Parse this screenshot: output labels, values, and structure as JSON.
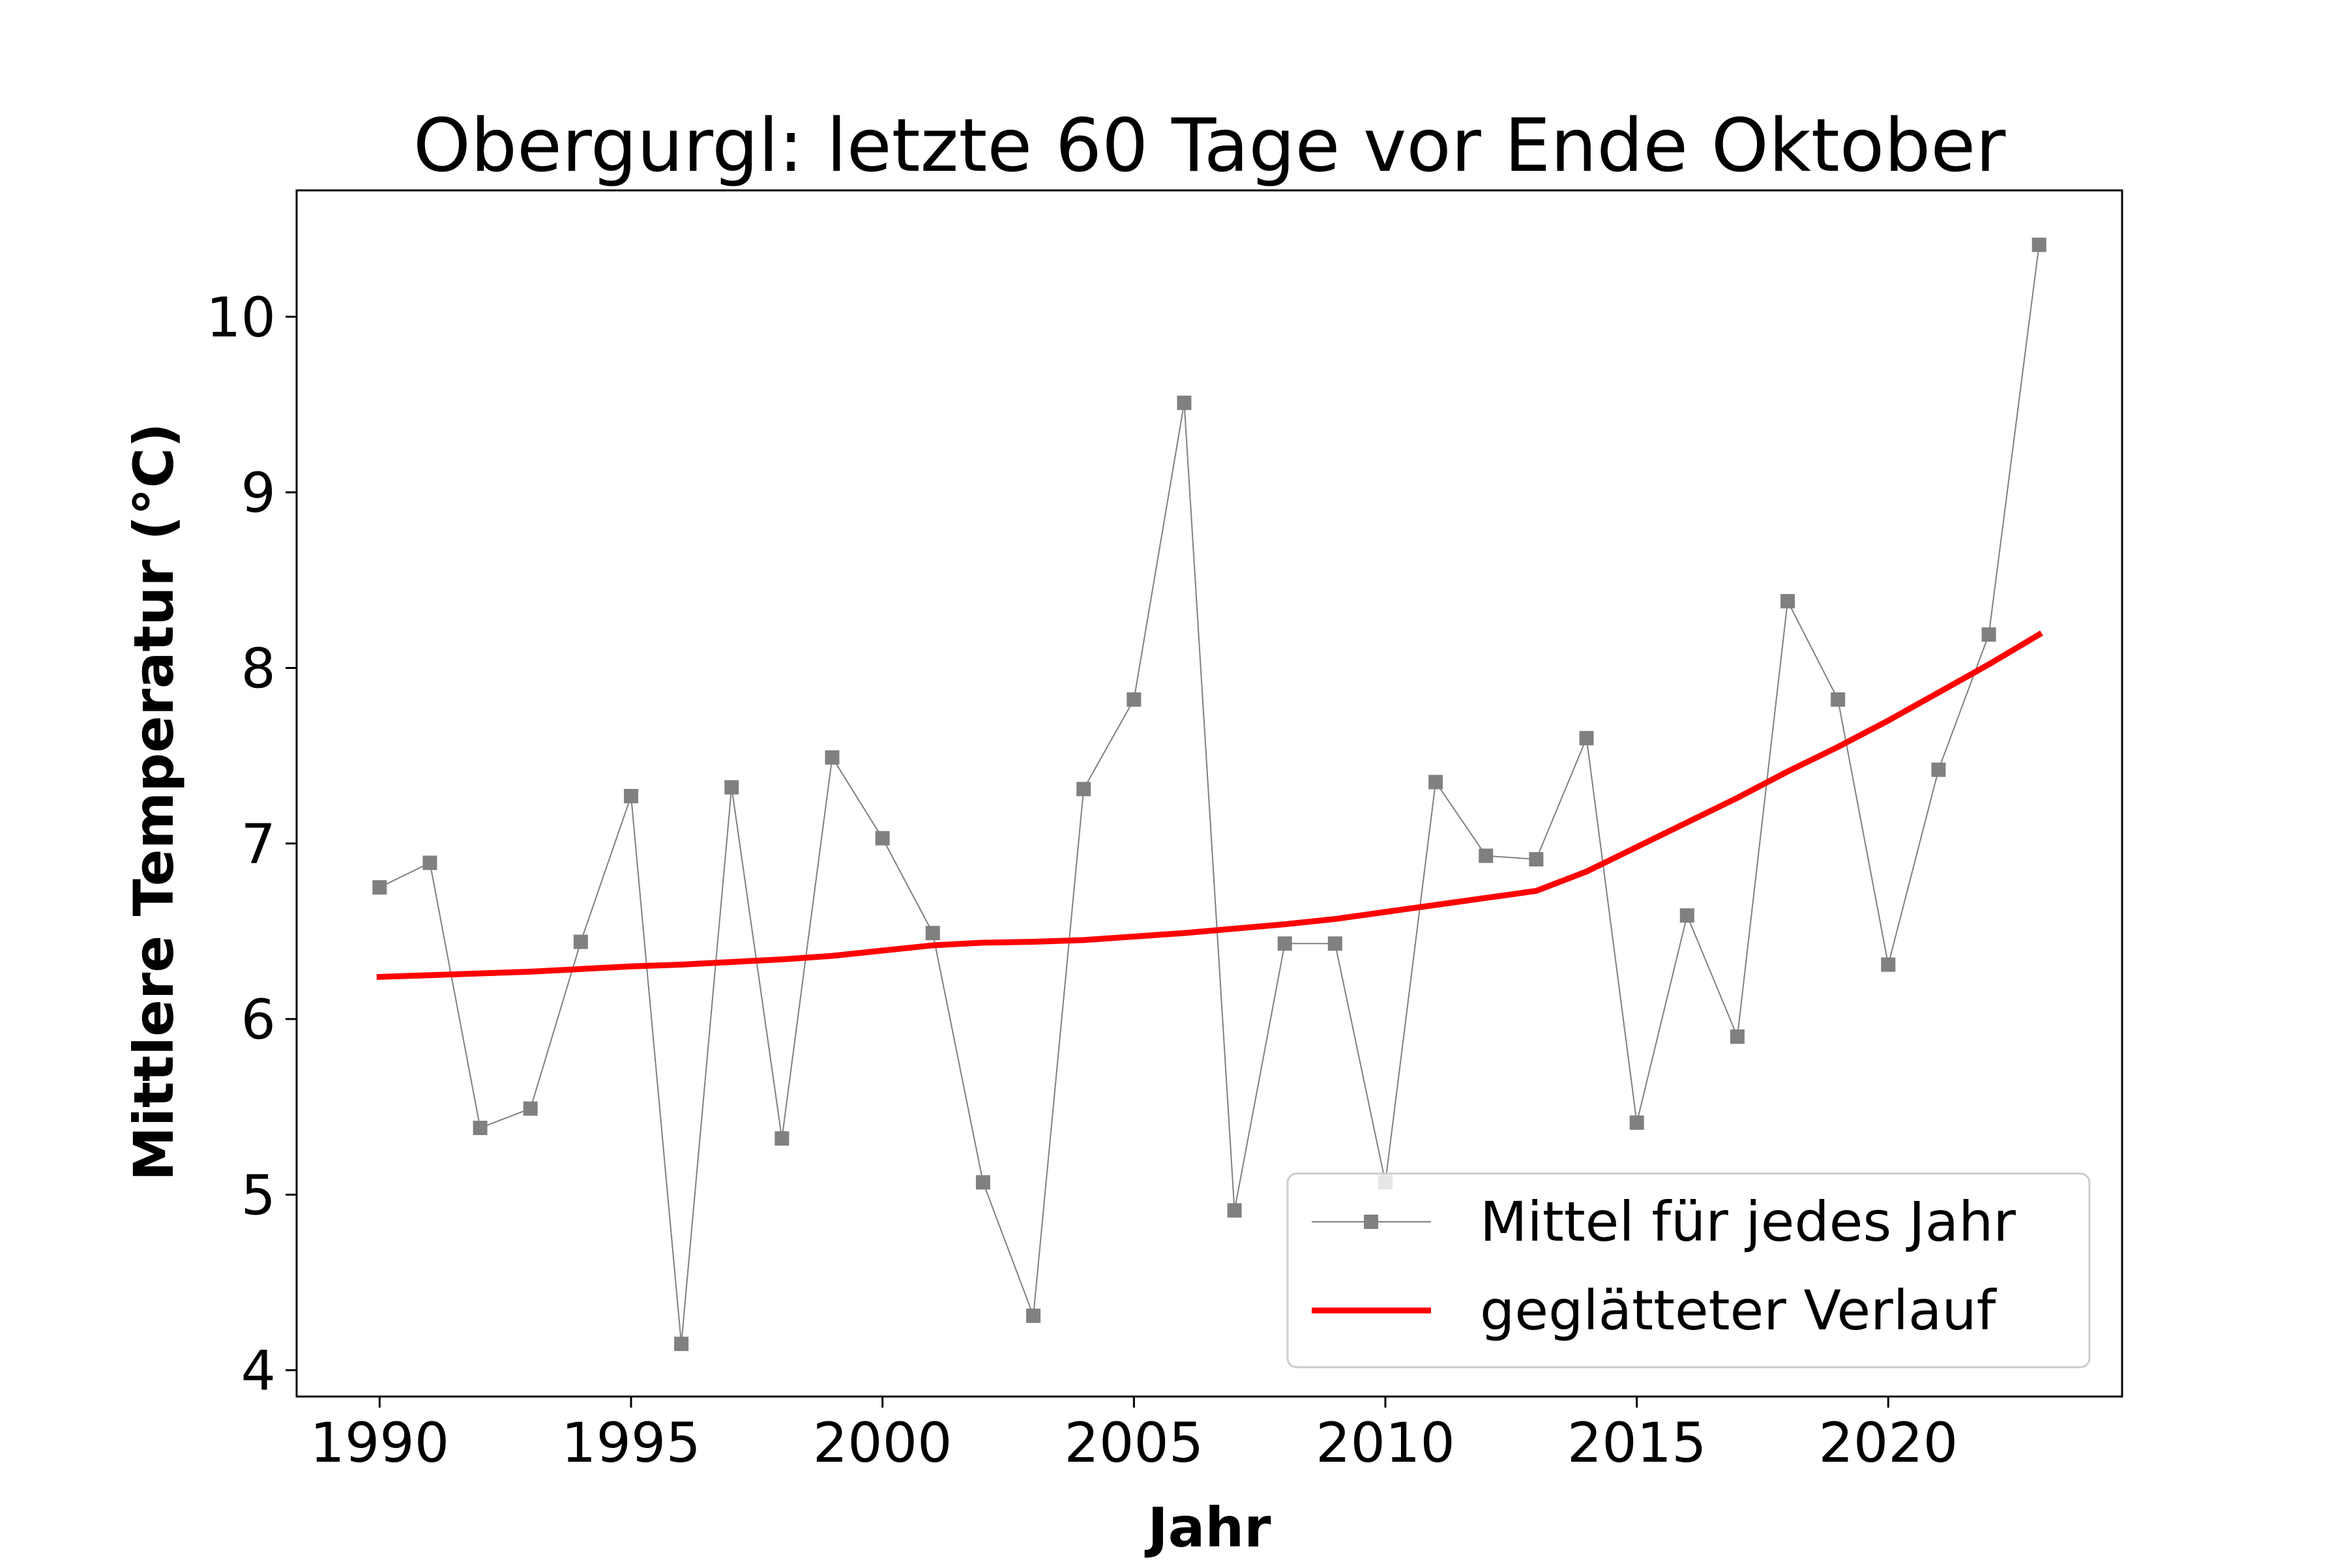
{
  "chart_data": {
    "type": "line",
    "title": "Obergurgl: letzte 60 Tage vor Ende Oktober",
    "xlabel": "Jahr",
    "ylabel": "Mittlere Temperatur (°C)",
    "xlim": [
      1988.35,
      2024.65
    ],
    "ylim": [
      3.85,
      10.72
    ],
    "xticks": [
      1990,
      1995,
      2000,
      2005,
      2010,
      2015,
      2020
    ],
    "yticks": [
      4,
      5,
      6,
      7,
      8,
      9,
      10
    ],
    "grid": false,
    "legend_position": "lower-right",
    "series": [
      {
        "name": "Mittel für jedes Jahr",
        "color": "#808080",
        "marker": "square",
        "x": [
          1990,
          1991,
          1992,
          1993,
          1994,
          1995,
          1996,
          1997,
          1998,
          1999,
          2000,
          2001,
          2002,
          2003,
          2004,
          2005,
          2006,
          2007,
          2008,
          2009,
          2010,
          2011,
          2012,
          2013,
          2014,
          2015,
          2016,
          2017,
          2018,
          2019,
          2020,
          2021,
          2022,
          2023
        ],
        "y": [
          6.75,
          6.89,
          5.38,
          5.49,
          6.44,
          7.27,
          4.15,
          7.32,
          5.32,
          7.49,
          7.03,
          6.49,
          5.07,
          4.31,
          7.31,
          7.82,
          9.51,
          4.91,
          6.43,
          6.43,
          5.07,
          7.35,
          6.93,
          6.91,
          7.6,
          5.41,
          6.59,
          5.9,
          8.38,
          7.82,
          6.31,
          7.42,
          8.19,
          10.41
        ]
      },
      {
        "name": "geglätteter Verlauf",
        "color": "#ff0000",
        "marker": "none",
        "x": [
          1990,
          1991,
          1992,
          1993,
          1994,
          1995,
          1996,
          1997,
          1998,
          1999,
          2000,
          2001,
          2002,
          2003,
          2004,
          2005,
          2006,
          2007,
          2008,
          2009,
          2010,
          2011,
          2012,
          2013,
          2014,
          2015,
          2016,
          2017,
          2018,
          2019,
          2020,
          2021,
          2022,
          2023
        ],
        "y": [
          6.24,
          6.25,
          6.26,
          6.27,
          6.285,
          6.3,
          6.31,
          6.325,
          6.34,
          6.36,
          6.39,
          6.42,
          6.435,
          6.44,
          6.45,
          6.47,
          6.49,
          6.515,
          6.54,
          6.57,
          6.61,
          6.65,
          6.69,
          6.73,
          6.84,
          6.98,
          7.12,
          7.26,
          7.41,
          7.55,
          7.7,
          7.86,
          8.02,
          8.19
        ]
      }
    ]
  }
}
